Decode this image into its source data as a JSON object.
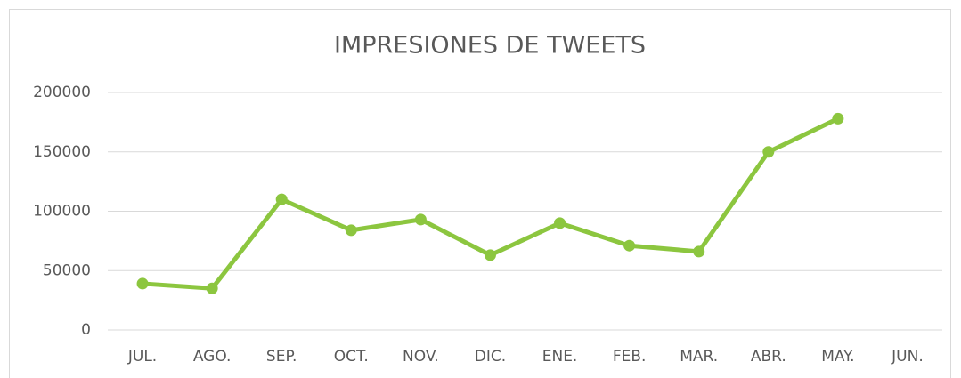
{
  "chart_data": {
    "type": "line",
    "title": "IMPRESIONES DE TWEETS",
    "categories": [
      "JUL.",
      "AGO.",
      "SEP.",
      "OCT.",
      "NOV.",
      "DIC.",
      "ENE.",
      "FEB.",
      "MAR.",
      "ABR.",
      "MAY.",
      "JUN."
    ],
    "values": [
      39000,
      35000,
      110000,
      84000,
      93000,
      63000,
      90000,
      71000,
      66000,
      150000,
      178000,
      null
    ],
    "color": "#8cc63f",
    "ylim": [
      0,
      200000
    ],
    "yticks": [
      0,
      50000,
      100000,
      150000,
      200000
    ],
    "grid": true
  }
}
